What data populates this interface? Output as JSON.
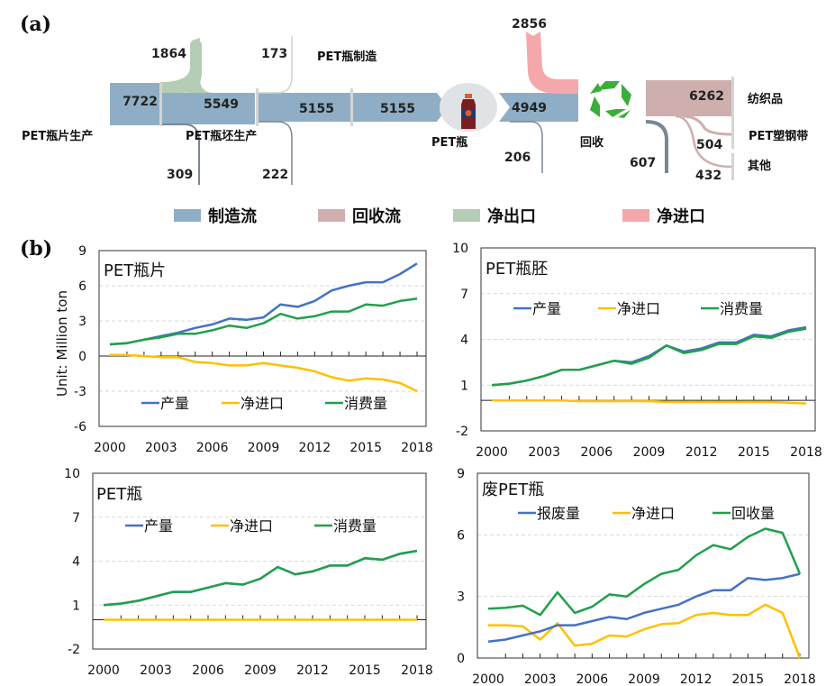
{
  "panel_a": {
    "label": "(a)",
    "colors": {
      "manufacture": "#8faec6",
      "recycle": "#cfaeae",
      "net_export": "#b5cdb4",
      "net_import": "#f4a8ab",
      "loss": "#7a8693",
      "divider": "#d5d5d5"
    },
    "nodes": {
      "flake": "PET瓶片生产",
      "preform": "PET瓶坯生产",
      "bottle_making": "PET瓶制造",
      "bottle": "PET瓶",
      "recycle": "回收",
      "textile": "纺织品",
      "strap": "PET塑钢带",
      "other": "其他"
    },
    "flows": {
      "flake_production": "7722",
      "flake_net_export": "1864",
      "flake_loss": "309",
      "preform_flow": "5549",
      "preform_net_export": "173",
      "preform_loss": "222",
      "bottle_flow_1": "5155",
      "bottle_flow_2": "5155",
      "waste_bottle": "4949",
      "waste_loss": "206",
      "net_import": "2856",
      "textile": "6262",
      "strap": "504",
      "other": "432",
      "recycle_loss": "607"
    },
    "legend": [
      {
        "label": "制造流",
        "color": "#8faec6"
      },
      {
        "label": "回收流",
        "color": "#cfaeae"
      },
      {
        "label": "净出口",
        "color": "#b5cdb4"
      },
      {
        "label": "净进口",
        "color": "#f4a8ab"
      }
    ]
  },
  "panel_b": {
    "label": "(b)",
    "ylabel": "Unit: Million ton"
  },
  "chart_data": [
    {
      "type": "line",
      "title": "PET瓶片",
      "xlabel": "",
      "ylabel": "Unit: Million ton",
      "x": [
        2000,
        2001,
        2002,
        2003,
        2004,
        2005,
        2006,
        2007,
        2008,
        2009,
        2010,
        2011,
        2012,
        2013,
        2014,
        2015,
        2016,
        2017,
        2018
      ],
      "xticks": [
        "2000",
        "2003",
        "2006",
        "2009",
        "2012",
        "2015",
        "2018"
      ],
      "yticks": [
        "9",
        "6",
        "3",
        "0",
        "-3",
        "-6"
      ],
      "ylim": [
        -6,
        9
      ],
      "grid": "horizontal dashed",
      "legend_position": "bottom",
      "series": [
        {
          "name": "产量",
          "color": "#4472c4",
          "values": [
            1.0,
            1.1,
            1.4,
            1.7,
            2.0,
            2.4,
            2.7,
            3.2,
            3.1,
            3.3,
            4.4,
            4.2,
            4.7,
            5.6,
            6.0,
            6.3,
            6.3,
            7.0,
            7.9
          ]
        },
        {
          "name": "净进口",
          "color": "#ffc000",
          "values": [
            0.1,
            0.1,
            0.0,
            -0.1,
            -0.1,
            -0.5,
            -0.6,
            -0.8,
            -0.8,
            -0.6,
            -0.8,
            -1.0,
            -1.3,
            -1.8,
            -2.1,
            -1.9,
            -2.0,
            -2.3,
            -3.0
          ]
        },
        {
          "name": "消费量",
          "color": "#21a04a",
          "values": [
            1.0,
            1.1,
            1.4,
            1.6,
            1.9,
            1.9,
            2.2,
            2.6,
            2.4,
            2.8,
            3.6,
            3.2,
            3.4,
            3.8,
            3.8,
            4.4,
            4.3,
            4.7,
            4.9
          ]
        }
      ]
    },
    {
      "type": "line",
      "title": "PET瓶胚",
      "x": [
        2000,
        2001,
        2002,
        2003,
        2004,
        2005,
        2006,
        2007,
        2008,
        2009,
        2010,
        2011,
        2012,
        2013,
        2014,
        2015,
        2016,
        2017,
        2018
      ],
      "xticks": [
        "2000",
        "2003",
        "2006",
        "2009",
        "2012",
        "2015",
        "2018"
      ],
      "yticks": [
        "10",
        "7",
        "4",
        "1",
        "-2"
      ],
      "ylim": [
        -2,
        10
      ],
      "grid": "horizontal dashed",
      "legend_position": "upper-center",
      "series": [
        {
          "name": "产量",
          "color": "#4472c4",
          "values": [
            1.0,
            1.1,
            1.3,
            1.6,
            2.0,
            2.0,
            2.3,
            2.6,
            2.5,
            2.9,
            3.6,
            3.2,
            3.4,
            3.8,
            3.8,
            4.3,
            4.2,
            4.6,
            4.8
          ]
        },
        {
          "name": "净进口",
          "color": "#ffc000",
          "values": [
            0.0,
            0.0,
            0.0,
            0.0,
            0.0,
            -0.05,
            -0.05,
            -0.05,
            -0.05,
            -0.05,
            -0.1,
            -0.1,
            -0.1,
            -0.1,
            -0.1,
            -0.1,
            -0.1,
            -0.15,
            -0.2
          ]
        },
        {
          "name": "消费量",
          "color": "#21a04a",
          "values": [
            1.0,
            1.1,
            1.3,
            1.6,
            2.0,
            2.0,
            2.3,
            2.6,
            2.4,
            2.8,
            3.6,
            3.1,
            3.3,
            3.7,
            3.7,
            4.2,
            4.1,
            4.5,
            4.7
          ]
        }
      ]
    },
    {
      "type": "line",
      "title": "PET瓶",
      "x": [
        2000,
        2001,
        2002,
        2003,
        2004,
        2005,
        2006,
        2007,
        2008,
        2009,
        2010,
        2011,
        2012,
        2013,
        2014,
        2015,
        2016,
        2017,
        2018
      ],
      "xticks": [
        "2000",
        "2003",
        "2006",
        "2009",
        "2012",
        "2015",
        "2018"
      ],
      "yticks": [
        "10",
        "7",
        "4",
        "1",
        "-2"
      ],
      "ylim": [
        -2,
        10
      ],
      "grid": "horizontal dashed",
      "legend_position": "upper-center",
      "series": [
        {
          "name": "产量",
          "color": "#4472c4",
          "values": [
            1.0,
            1.1,
            1.3,
            1.6,
            1.9,
            1.9,
            2.2,
            2.5,
            2.4,
            2.8,
            3.6,
            3.1,
            3.3,
            3.7,
            3.7,
            4.2,
            4.1,
            4.5,
            4.7
          ]
        },
        {
          "name": "净进口",
          "color": "#ffc000",
          "values": [
            0,
            0,
            0,
            0,
            0,
            0,
            0,
            0,
            0,
            0,
            0,
            0,
            0,
            0,
            0,
            0,
            0,
            0,
            0
          ]
        },
        {
          "name": "消费量",
          "color": "#21a04a",
          "values": [
            1.0,
            1.1,
            1.3,
            1.6,
            1.9,
            1.9,
            2.2,
            2.5,
            2.4,
            2.8,
            3.6,
            3.1,
            3.3,
            3.7,
            3.7,
            4.2,
            4.1,
            4.5,
            4.7
          ]
        }
      ]
    },
    {
      "type": "line",
      "title": "废PET瓶",
      "x": [
        2000,
        2001,
        2002,
        2003,
        2004,
        2005,
        2006,
        2007,
        2008,
        2009,
        2010,
        2011,
        2012,
        2013,
        2014,
        2015,
        2016,
        2017,
        2018
      ],
      "xticks": [
        "2000",
        "2003",
        "2006",
        "2009",
        "2012",
        "2015",
        "2018"
      ],
      "yticks": [
        "9",
        "6",
        "3",
        "0"
      ],
      "ylim": [
        0,
        9
      ],
      "grid": "horizontal dashed",
      "legend_position": "upper-center",
      "series": [
        {
          "name": "报废量",
          "color": "#4472c4",
          "values": [
            0.8,
            0.9,
            1.1,
            1.3,
            1.6,
            1.6,
            1.8,
            2.0,
            1.9,
            2.2,
            2.4,
            2.6,
            3.0,
            3.3,
            3.3,
            3.9,
            3.8,
            3.9,
            4.1
          ]
        },
        {
          "name": "净进口",
          "color": "#ffc000",
          "values": [
            1.6,
            1.6,
            1.55,
            0.9,
            1.7,
            0.6,
            0.7,
            1.1,
            1.05,
            1.4,
            1.65,
            1.7,
            2.1,
            2.2,
            2.1,
            2.1,
            2.6,
            2.2,
            0.0
          ]
        },
        {
          "name": "回收量",
          "color": "#21a04a",
          "values": [
            2.4,
            2.45,
            2.55,
            2.1,
            3.2,
            2.2,
            2.5,
            3.1,
            3.0,
            3.6,
            4.1,
            4.3,
            5.0,
            5.5,
            5.3,
            5.9,
            6.3,
            6.1,
            4.1
          ]
        }
      ]
    }
  ]
}
